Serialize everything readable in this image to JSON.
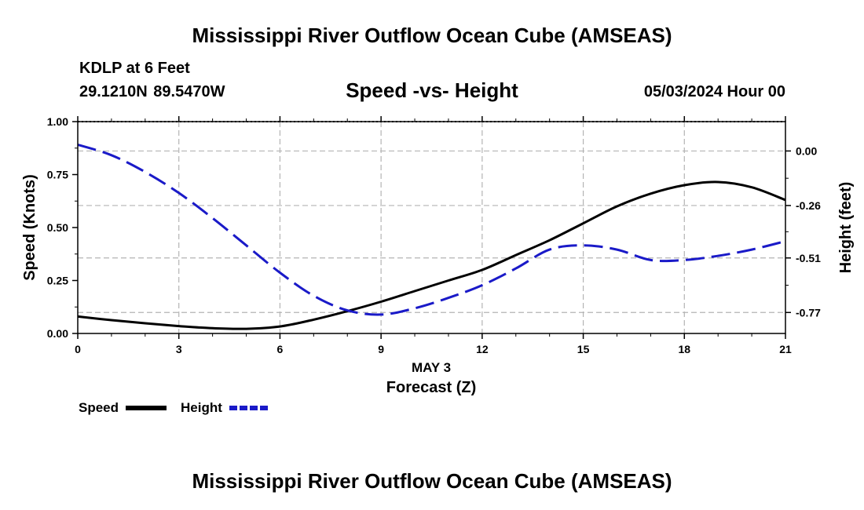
{
  "header": {
    "title": "Mississippi River Outflow Ocean Cube (AMSEAS)",
    "station": "KDLP at 6 Feet",
    "latlon": "29.1210N  89.5470W",
    "subtitle": "Speed -vs- Height",
    "datetime": "05/03/2024 Hour 00"
  },
  "footer": {
    "title": "Mississippi River Outflow Ocean Cube (AMSEAS)"
  },
  "chart_data": {
    "type": "line",
    "title": "Speed -vs- Height",
    "xlabel": "Forecast (Z)",
    "xlabel_date": "MAY 3",
    "ylabel_left": "Speed (Knots)",
    "ylabel_right": "Height (feet)",
    "x_ticks": [
      0,
      3,
      6,
      9,
      12,
      15,
      18,
      21
    ],
    "xlim": [
      0,
      21
    ],
    "y_left_ticks": [
      "0.00",
      "0.25",
      "0.50",
      "0.75",
      "1.00"
    ],
    "y_left_lim": [
      0,
      1
    ],
    "y_right_ticks": [
      "0.00",
      "-0.26",
      "-0.51",
      "-0.77"
    ],
    "y_right_values": [
      0.0,
      -0.26,
      -0.51,
      -0.77
    ],
    "y_right_lim": [
      -0.87,
      0.14
    ],
    "grid": true,
    "legend": [
      {
        "name": "Speed",
        "color": "#000000",
        "style": "solid"
      },
      {
        "name": "Height",
        "color": "#1a1ac8",
        "style": "dashed"
      }
    ],
    "series": [
      {
        "name": "Speed",
        "axis": "left",
        "color": "#000000",
        "x": [
          0,
          1,
          2,
          3,
          4,
          5,
          6,
          7,
          8,
          9,
          10,
          11,
          12,
          13,
          14,
          15,
          16,
          17,
          18,
          19,
          20,
          21
        ],
        "values": [
          0.08,
          0.063,
          0.048,
          0.035,
          0.025,
          0.022,
          0.033,
          0.065,
          0.105,
          0.15,
          0.2,
          0.25,
          0.3,
          0.37,
          0.44,
          0.52,
          0.6,
          0.66,
          0.7,
          0.715,
          0.69,
          0.63
        ]
      },
      {
        "name": "Height",
        "axis": "right",
        "color": "#1a1ac8",
        "x": [
          0,
          1,
          2,
          3,
          4,
          5,
          6,
          7,
          8,
          9,
          10,
          11,
          12,
          13,
          14,
          15,
          16,
          17,
          18,
          19,
          20,
          21
        ],
        "values": [
          0.03,
          -0.02,
          -0.1,
          -0.2,
          -0.32,
          -0.45,
          -0.58,
          -0.69,
          -0.76,
          -0.78,
          -0.75,
          -0.7,
          -0.64,
          -0.56,
          -0.47,
          -0.45,
          -0.47,
          -0.52,
          -0.52,
          -0.5,
          -0.47,
          -0.43
        ]
      }
    ]
  }
}
